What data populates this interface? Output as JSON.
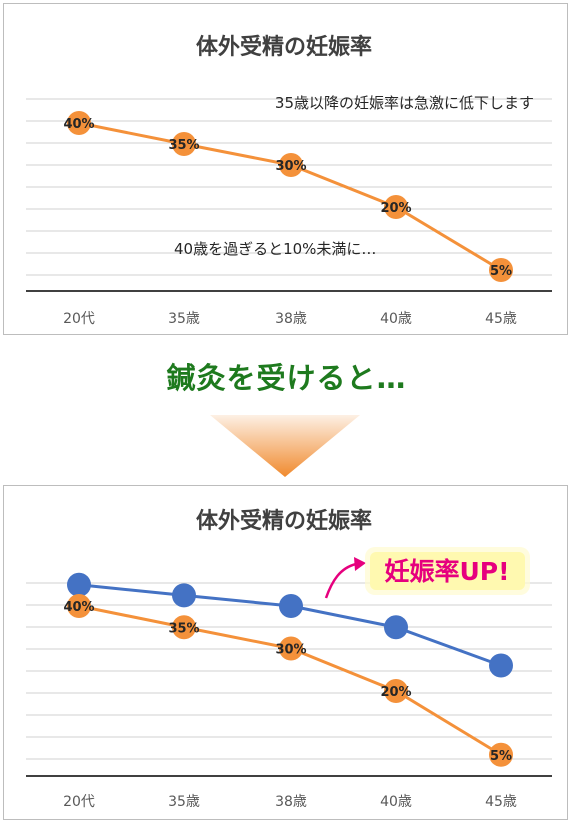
{
  "middle_text": "鍼灸を受けると…",
  "colors": {
    "orange": "#f4913a",
    "blue": "#4472c4",
    "grid": "#d0d0d0",
    "green_text": "#1e7a1e",
    "badge_text": "#e6007e",
    "badge_bg": "#fff9b0"
  },
  "chart_data": [
    {
      "type": "line",
      "title": "体外受精の妊娠率",
      "categories": [
        "20代",
        "35歳",
        "38歳",
        "40歳",
        "45歳"
      ],
      "series": [
        {
          "values": [
            40,
            35,
            30,
            20,
            5
          ],
          "labels": [
            "40%",
            "35%",
            "30%",
            "20%",
            "5%"
          ],
          "color": "orange"
        }
      ],
      "annotations": [
        "35歳以降の妊娠率は急激に低下します",
        "40歳を過ぎると10%未満に…"
      ],
      "ylim": [
        0,
        45
      ],
      "grid": true
    },
    {
      "type": "line",
      "title": "体外受精の妊娠率",
      "categories": [
        "20代",
        "35歳",
        "38歳",
        "40歳",
        "45歳"
      ],
      "series": [
        {
          "values": [
            45,
            42.5,
            40,
            35,
            26
          ],
          "labels": [],
          "color": "blue"
        },
        {
          "values": [
            40,
            35,
            30,
            20,
            5
          ],
          "labels": [
            "40%",
            "35%",
            "30%",
            "20%",
            "5%"
          ],
          "color": "orange"
        }
      ],
      "annotations": [
        "妊娠率UP!"
      ],
      "ylim": [
        0,
        50
      ],
      "grid": true
    }
  ]
}
